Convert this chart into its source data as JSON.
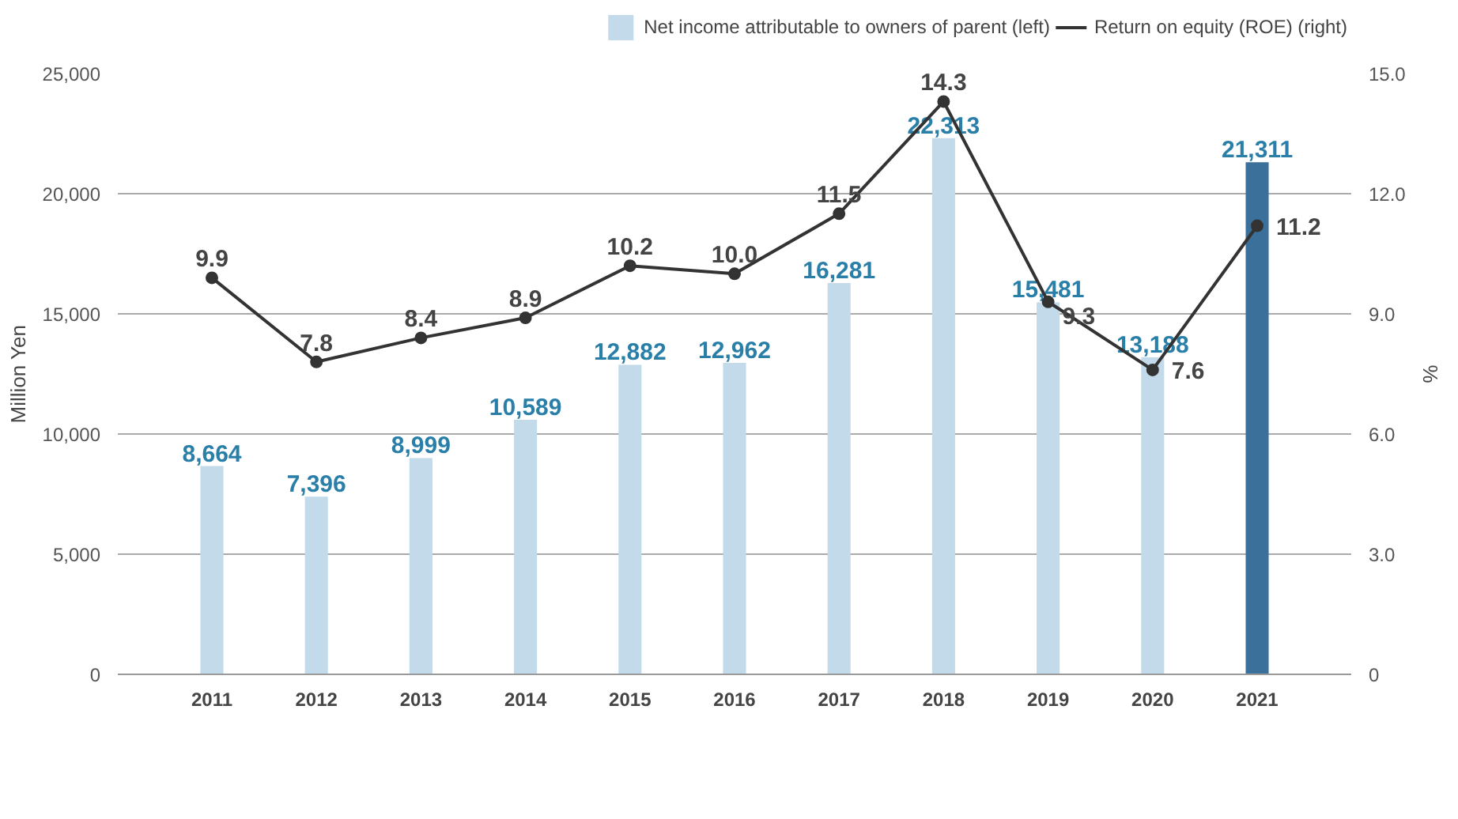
{
  "chart_data": {
    "type": "bar",
    "categories": [
      "2011",
      "2012",
      "2013",
      "2014",
      "2015",
      "2016",
      "2017",
      "2018",
      "2019",
      "2020",
      "2021"
    ],
    "ylabel": "Million Yen",
    "y2label": "%",
    "ylim": [
      0,
      25000
    ],
    "yticks": [
      0,
      {
        "value": 5000,
        "label": "5,000"
      },
      {
        "value": 10000,
        "label": "10,000"
      },
      {
        "value": 15000,
        "label": "15,000"
      },
      {
        "value": 20000,
        "label": "20,000"
      },
      {
        "value": 25000,
        "label": "25,000"
      }
    ],
    "y2lim": [
      0,
      15
    ],
    "y2ticks": [
      0,
      {
        "value": 3,
        "label": "3.0"
      },
      {
        "value": 6,
        "label": "6.0"
      },
      {
        "value": 9,
        "label": "9.0"
      },
      {
        "value": 12,
        "label": "12.0"
      },
      {
        "value": 15,
        "label": "15.0"
      }
    ],
    "grid": "y",
    "legend": "top right",
    "data_labels": true,
    "series": [
      {
        "name": "Net income attributable to owners of parent (left)",
        "color": "#c2dae9",
        "colors": [
          "#c2dae9",
          "#c2dae9",
          "#c2dae9",
          "#c2dae9",
          "#c2dae9",
          "#c2dae9",
          "#c2dae9",
          "#c2dae9",
          "#c2dae9",
          "#c2dae9",
          "#3a7099"
        ],
        "values": [
          8664,
          7396,
          8999,
          10589,
          12882,
          12962,
          16281,
          22313,
          15481,
          13188,
          21311
        ],
        "value_labels": [
          "8,664",
          "7,396",
          "8,999",
          "10,589",
          "12,882",
          "12,962",
          "16,281",
          "22,313",
          "15,481",
          "13,188",
          "21,311"
        ]
      },
      {
        "name": "Return on equity (ROE) (right)",
        "type": "line",
        "axis": "y2",
        "color": "#333333",
        "marker": "circle",
        "values": [
          9.9,
          7.8,
          8.4,
          8.9,
          10.2,
          10.0,
          11.5,
          14.3,
          9.3,
          7.6,
          11.2
        ],
        "value_labels": [
          "9.9",
          "7.8",
          "8.4",
          "8.9",
          "10.2",
          "10.0",
          "11.5",
          "14.3",
          "9.3",
          "7.6",
          "11.2"
        ]
      }
    ]
  }
}
